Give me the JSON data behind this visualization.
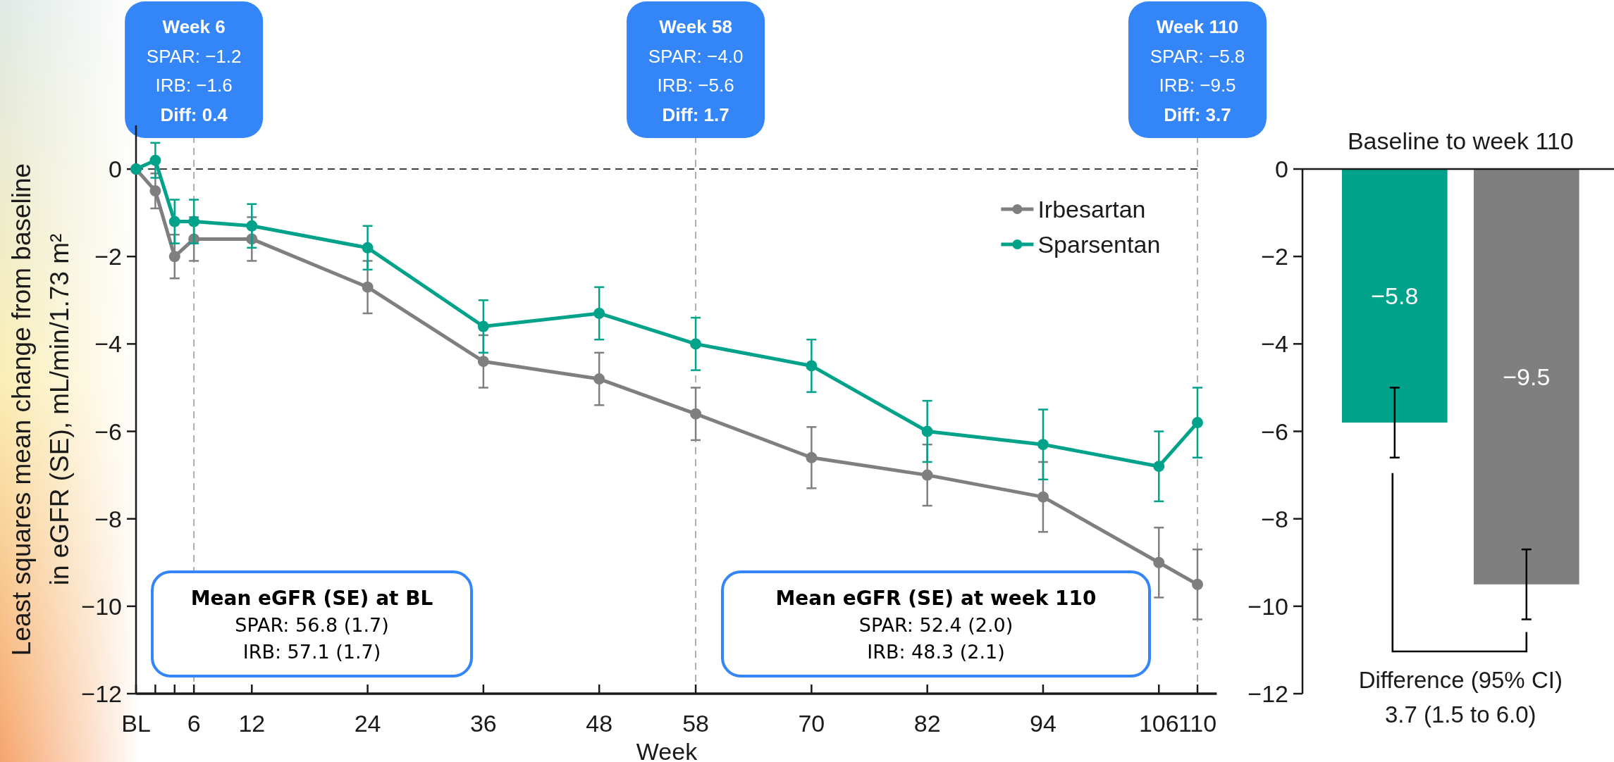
{
  "chart_data": [
    {
      "type": "line",
      "xlabel": "Week",
      "ylabel": "Least squares mean change from baseline\nin eGFR (SE), mL/min/1.73 m²",
      "x": [
        0,
        2,
        4,
        6,
        12,
        24,
        36,
        48,
        58,
        70,
        82,
        94,
        106,
        110
      ],
      "series": [
        {
          "name": "Irbesartan",
          "color": "#7f7f7f",
          "values": [
            0,
            -0.5,
            -2.0,
            -1.6,
            -1.6,
            -2.7,
            -4.4,
            -4.8,
            -5.6,
            -6.6,
            -7.0,
            -7.5,
            -9.0,
            -9.5
          ],
          "errors": [
            null,
            0.4,
            0.5,
            0.5,
            0.5,
            0.6,
            0.6,
            0.6,
            0.6,
            0.7,
            0.7,
            0.8,
            0.8,
            0.8
          ]
        },
        {
          "name": "Sparsentan",
          "color": "#00a28a",
          "values": [
            0,
            0.2,
            -1.2,
            -1.2,
            -1.3,
            -1.8,
            -3.6,
            -3.3,
            -4.0,
            -4.5,
            -6.0,
            -6.3,
            -6.8,
            -5.8
          ],
          "errors": [
            null,
            0.4,
            0.5,
            0.5,
            0.5,
            0.5,
            0.6,
            0.6,
            0.6,
            0.6,
            0.7,
            0.8,
            0.8,
            0.8
          ]
        }
      ],
      "xlim": [
        0,
        112
      ],
      "xticks": [
        {
          "value": 0,
          "label": "BL"
        },
        {
          "value": 2,
          "label": null
        },
        {
          "value": 4,
          "label": null
        },
        6,
        12,
        24,
        36,
        48,
        58,
        70,
        82,
        94,
        106,
        110
      ],
      "ylim": [
        -12,
        1
      ],
      "yticks": [
        0,
        {
          "value": -2,
          "label": "−2"
        },
        {
          "value": -4,
          "label": "−4"
        },
        {
          "value": -6,
          "label": "−6"
        },
        {
          "value": -8,
          "label": "−8"
        },
        {
          "value": -10,
          "label": "−10"
        },
        {
          "value": -12,
          "label": "−12"
        }
      ],
      "ref_lines": [
        {
          "axis": "y",
          "value": 0,
          "color": "#404040",
          "line_style": "dashed"
        },
        {
          "axis": "x",
          "value": 6,
          "label": "Week 6\nSPAR: −1.2\nIRB: −1.6\nDiff: 0.4",
          "color": "#a6a6a6",
          "line_style": "dashed"
        },
        {
          "axis": "x",
          "value": 58,
          "label": "Week 58\nSPAR: −4.0\nIRB: −5.6\nDiff: 1.7",
          "color": "#a6a6a6",
          "line_style": "dashed"
        },
        {
          "axis": "x",
          "value": 110,
          "label": "Week 110\nSPAR: −5.8\nIRB: −9.5\nDiff: 3.7",
          "color": "#a6a6a6",
          "line_style": "dashed"
        }
      ],
      "annotations": [
        "Mean eGFR (SE) at BL\nSPAR: 56.8 (1.7)\nIRB: 57.1 (1.7)",
        "Mean eGFR (SE) at week 110\nSPAR: 52.4 (2.0)\nIRB: 48.3 (2.1)"
      ],
      "legend": "top right",
      "marker": "circle",
      "line_style": "solid"
    },
    {
      "type": "bar",
      "title": "Baseline to week 110",
      "categories": [
        null,
        null
      ],
      "values": [
        -5.8,
        -9.5
      ],
      "colors": [
        "#00a28a",
        "#7f7f7f"
      ],
      "errors": [
        0.8,
        0.8
      ],
      "value_labels": [
        "−5.8",
        "−9.5"
      ],
      "ylim": [
        -12,
        0
      ],
      "yticks": [
        0,
        {
          "value": -2,
          "label": "−2"
        },
        {
          "value": -4,
          "label": "−4"
        },
        {
          "value": -6,
          "label": "−6"
        },
        {
          "value": -8,
          "label": "−8"
        },
        {
          "value": -10,
          "label": "−10"
        },
        {
          "value": -12,
          "label": "−12"
        }
      ],
      "annotations": [
        "Difference (95% CI)\n3.7 (1.5 to 6.0)"
      ]
    }
  ]
}
